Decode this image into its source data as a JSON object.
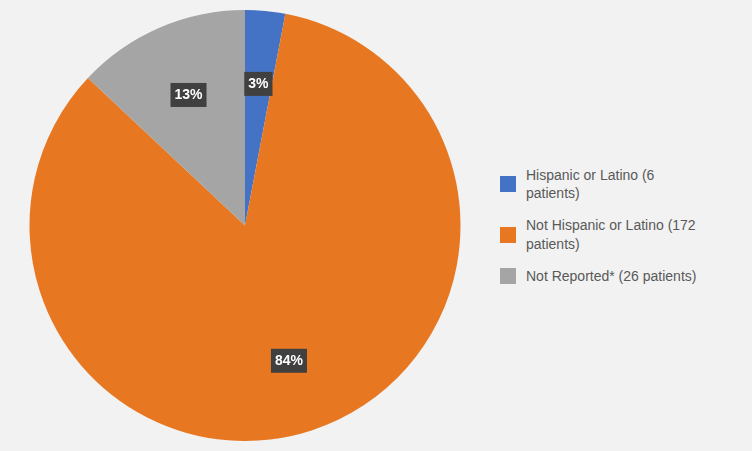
{
  "chart_data": {
    "type": "pie",
    "categories": [
      "Hispanic or Latino (6\n patients)",
      "Not Hispanic or Latino (172\n patients)",
      "Not Reported* (26 patients)"
    ],
    "values": [
      3,
      84,
      13
    ],
    "value_labels": [
      "3%",
      "84%",
      "13%"
    ],
    "colors": [
      "#4472C4",
      "#E87722",
      "#A5A5A5"
    ],
    "data_labels": true,
    "legend": "right"
  }
}
